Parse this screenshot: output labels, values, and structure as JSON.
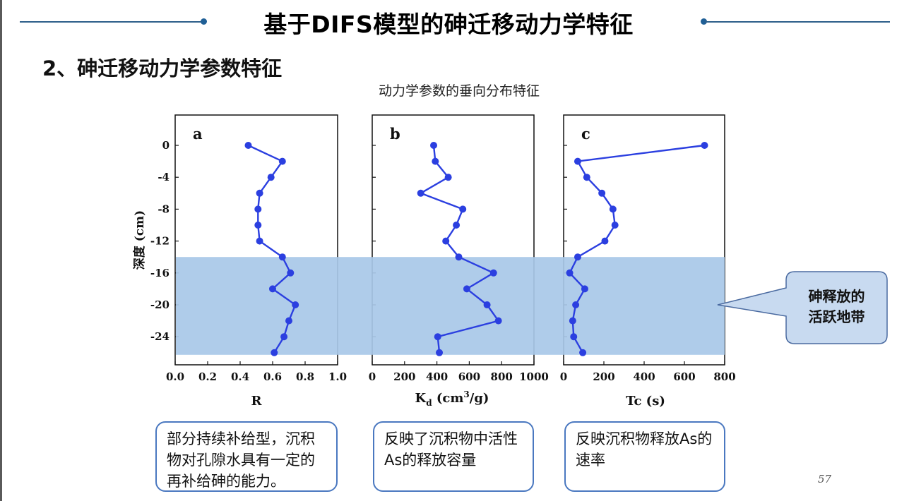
{
  "slide": {
    "title": "基于DIFS模型的砷迁移动力学特征",
    "subtitle": "2、砷迁移动力学参数特征",
    "figure_caption": "动力学参数的垂向分布特征",
    "callout": {
      "line1": "砷释放的",
      "line2": "活跃地带"
    },
    "notes": [
      "部分持续补给型，沉积物对孔隙水具有一定的再补给砷的能力。",
      "反映了沉积物中活性As的释放容量",
      "反映沉积物释放As的速率"
    ],
    "page_number": "57"
  },
  "colors": {
    "series": "#2b3fe0",
    "highlight_band": "#a8c8e8",
    "callout_fill": "#c8daf0",
    "callout_border": "#4a6aa0",
    "accent_line": "#2e5f8a",
    "note_border": "#4a78c0"
  },
  "chart_data": [
    {
      "type": "line",
      "panel_label": "a",
      "xlabel": "R",
      "ylabel": "深度 (cm)",
      "xlim": [
        0.0,
        1.0
      ],
      "xticks": [
        "0.0",
        "0.2",
        "0.4",
        "0.6",
        "0.8",
        "1.0"
      ],
      "ylim": [
        -26,
        2
      ],
      "yticks": [
        "0",
        "-4",
        "-8",
        "-12",
        "-16",
        "-20",
        "-24"
      ],
      "points": [
        {
          "x": 0.45,
          "y": 0
        },
        {
          "x": 0.66,
          "y": -2
        },
        {
          "x": 0.59,
          "y": -4
        },
        {
          "x": 0.52,
          "y": -6
        },
        {
          "x": 0.51,
          "y": -8
        },
        {
          "x": 0.51,
          "y": -10
        },
        {
          "x": 0.52,
          "y": -12
        },
        {
          "x": 0.66,
          "y": -14
        },
        {
          "x": 0.71,
          "y": -16
        },
        {
          "x": 0.6,
          "y": -18
        },
        {
          "x": 0.74,
          "y": -20
        },
        {
          "x": 0.7,
          "y": -22
        },
        {
          "x": 0.67,
          "y": -24
        },
        {
          "x": 0.61,
          "y": -26
        }
      ],
      "highlight_band": [
        -14,
        -26
      ]
    },
    {
      "type": "line",
      "panel_label": "b",
      "xlabel": "Kd (cm³/g)",
      "xlabel_main": "K",
      "xlabel_sub": "d",
      "xlabel_unit_pre": " (cm",
      "xlabel_unit_sup": "3",
      "xlabel_unit_post": "/g)",
      "xlim": [
        0,
        1000
      ],
      "xticks": [
        "0",
        "200",
        "400",
        "600",
        "800",
        "1000"
      ],
      "ylim": [
        -26,
        2
      ],
      "points": [
        {
          "x": 380,
          "y": 0
        },
        {
          "x": 390,
          "y": -2
        },
        {
          "x": 470,
          "y": -4
        },
        {
          "x": 300,
          "y": -6
        },
        {
          "x": 560,
          "y": -8
        },
        {
          "x": 520,
          "y": -10
        },
        {
          "x": 455,
          "y": -12
        },
        {
          "x": 535,
          "y": -14
        },
        {
          "x": 750,
          "y": -16
        },
        {
          "x": 585,
          "y": -18
        },
        {
          "x": 710,
          "y": -20
        },
        {
          "x": 780,
          "y": -22
        },
        {
          "x": 405,
          "y": -24
        },
        {
          "x": 415,
          "y": -26
        }
      ],
      "highlight_band": [
        -14,
        -26
      ]
    },
    {
      "type": "line",
      "panel_label": "c",
      "xlabel": "Tc (s)",
      "xlim": [
        0,
        800
      ],
      "xticks": [
        "0",
        "200",
        "400",
        "600",
        "800"
      ],
      "ylim": [
        -26,
        2
      ],
      "points": [
        {
          "x": 700,
          "y": 0
        },
        {
          "x": 70,
          "y": -2
        },
        {
          "x": 115,
          "y": -4
        },
        {
          "x": 190,
          "y": -6
        },
        {
          "x": 245,
          "y": -8
        },
        {
          "x": 255,
          "y": -10
        },
        {
          "x": 205,
          "y": -12
        },
        {
          "x": 70,
          "y": -14
        },
        {
          "x": 30,
          "y": -16
        },
        {
          "x": 105,
          "y": -18
        },
        {
          "x": 60,
          "y": -20
        },
        {
          "x": 45,
          "y": -22
        },
        {
          "x": 50,
          "y": -24
        },
        {
          "x": 95,
          "y": -26
        }
      ],
      "highlight_band": [
        -14,
        -26
      ]
    }
  ]
}
